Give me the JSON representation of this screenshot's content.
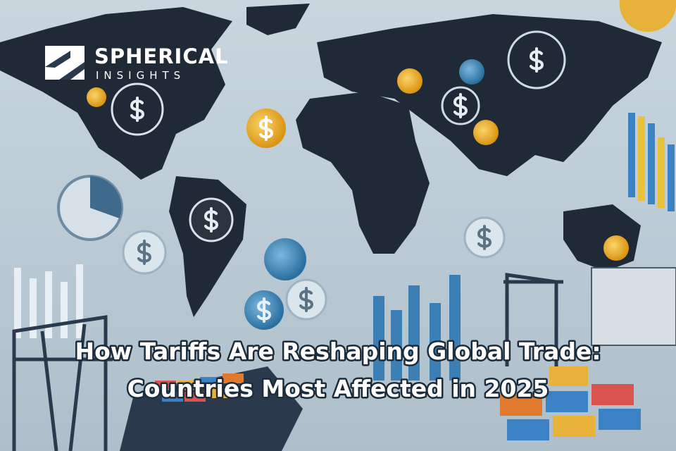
{
  "logo": {
    "name": "SPHERICAL",
    "tagline": "INSIGHTS"
  },
  "title": {
    "lines": [
      "How Tariffs Are Reshaping Global Trade:",
      "Countries Most Affected in 2025"
    ]
  }
}
